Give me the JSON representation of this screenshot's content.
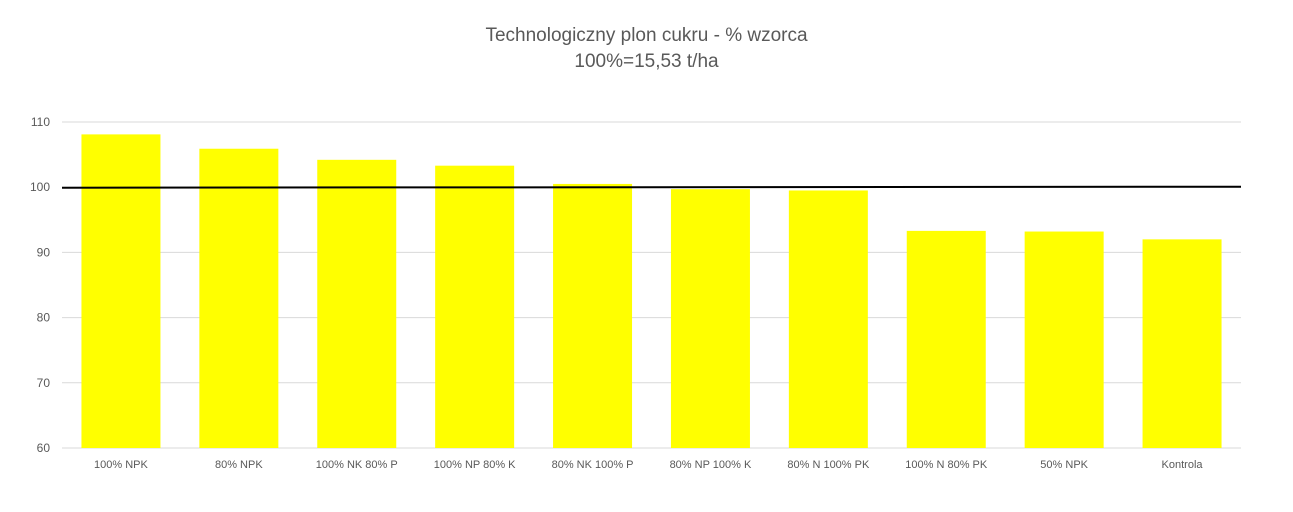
{
  "chart_data": {
    "type": "bar",
    "title": "Technologiczny plon cukru - % wzorca",
    "subtitle": "100%=15,53 t/ha",
    "categories": [
      "100% NPK",
      "80% NPK",
      "100% NK 80% P",
      "100% NP 80% K",
      "80% NK 100% P",
      "80% NP 100% K",
      "80% N 100% PK",
      "100% N 80% PK",
      "50% NPK",
      "Kontrola"
    ],
    "values": [
      108.1,
      105.9,
      104.2,
      103.3,
      100.5,
      99.7,
      99.5,
      93.3,
      93.2,
      92.0
    ],
    "reference_line": {
      "value": 100
    },
    "ylim": [
      60,
      110
    ],
    "yticks": [
      60,
      70,
      80,
      90,
      100,
      110
    ],
    "xlabel": "",
    "ylabel": "",
    "grid": true,
    "legend": "none",
    "bar_color": "#FFFF00",
    "line_color": "#000000",
    "grid_color": "#D9D9D9",
    "text_color": "#595959"
  }
}
